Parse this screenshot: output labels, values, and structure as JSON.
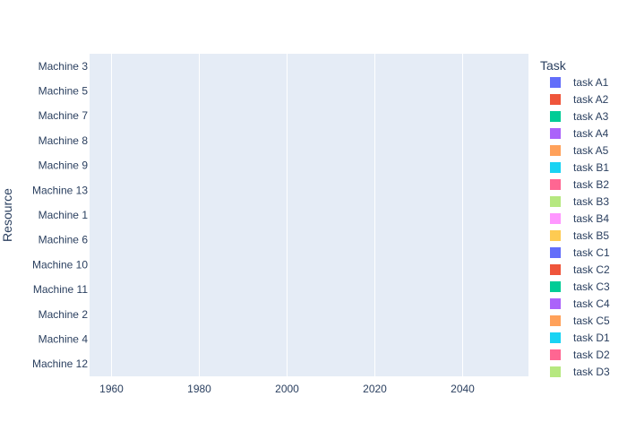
{
  "chart_data": {
    "type": "bar",
    "orientation": "horizontal-timeline",
    "title": "",
    "xlabel": "",
    "ylabel": "Resource",
    "legend_title": "Task",
    "legend_placement": "right",
    "grid": true,
    "xlim": [
      1955,
      2055
    ],
    "x_ticks": [
      "1960",
      "1980",
      "2000",
      "2020",
      "2040"
    ],
    "categories": [
      "Machine 3",
      "Machine 5",
      "Machine 7",
      "Machine 8",
      "Machine 9",
      "Machine 13",
      "Machine 1",
      "Machine 6",
      "Machine 10",
      "Machine 11",
      "Machine 2",
      "Machine 4",
      "Machine 12"
    ],
    "series": [
      {
        "name": "task A1",
        "color": "#636efa"
      },
      {
        "name": "task A2",
        "color": "#EF553B"
      },
      {
        "name": "task A3",
        "color": "#00cc96"
      },
      {
        "name": "task A4",
        "color": "#ab63fa"
      },
      {
        "name": "task A5",
        "color": "#FFA15A"
      },
      {
        "name": "task B1",
        "color": "#19d3f3"
      },
      {
        "name": "task B2",
        "color": "#FF6692"
      },
      {
        "name": "task B3",
        "color": "#B6E880"
      },
      {
        "name": "task B4",
        "color": "#FF97FF"
      },
      {
        "name": "task B5",
        "color": "#FECB52"
      },
      {
        "name": "task C1",
        "color": "#636efa"
      },
      {
        "name": "task C2",
        "color": "#EF553B"
      },
      {
        "name": "task C3",
        "color": "#00cc96"
      },
      {
        "name": "task C4",
        "color": "#ab63fa"
      },
      {
        "name": "task C5",
        "color": "#FFA15A"
      },
      {
        "name": "task D1",
        "color": "#19d3f3"
      },
      {
        "name": "task D2",
        "color": "#FF6692"
      },
      {
        "name": "task D3",
        "color": "#B6E880"
      }
    ],
    "colors": {
      "plot_bg": "#e5ecf6",
      "grid": "#ffffff",
      "text": "#2a3f5f"
    }
  }
}
